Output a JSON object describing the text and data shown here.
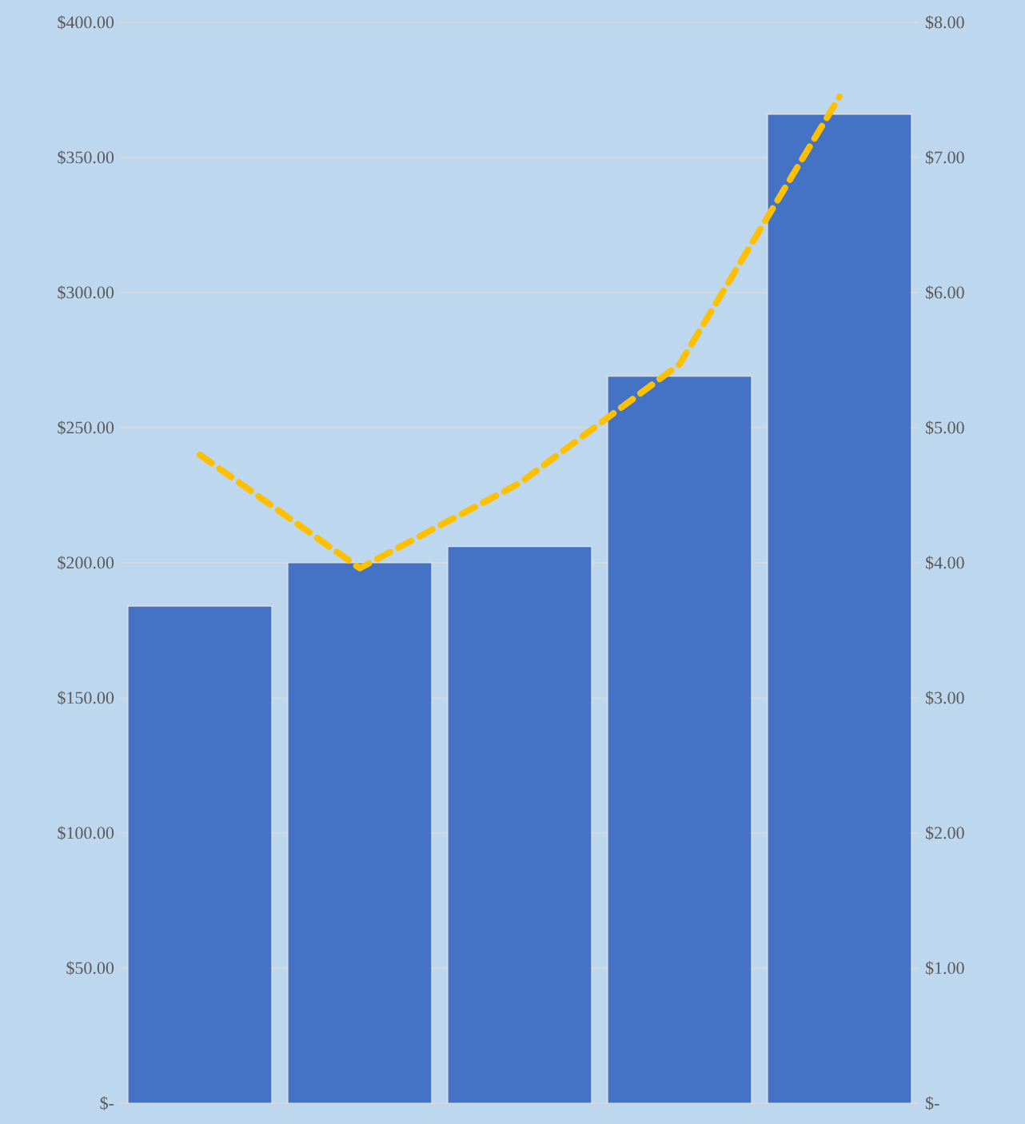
{
  "chart_data": {
    "type": "bar",
    "categories": [
      null,
      null,
      null,
      null,
      null
    ],
    "series": [
      {
        "color": "#4472c4",
        "values": [
          184,
          200,
          206,
          269,
          366
        ]
      },
      {
        "type": "line",
        "axis": "y2",
        "color": "#ffc000",
        "line_style": "dashed",
        "marker": "none",
        "values": [
          4.8,
          3.96,
          4.59,
          5.47,
          7.45
        ]
      }
    ],
    "ylim": [
      0,
      400
    ],
    "yticks": [
      {
        "value": 0,
        "label": "$-"
      },
      {
        "value": 50,
        "label": "$50.00"
      },
      {
        "value": 100,
        "label": "$100.00"
      },
      {
        "value": 150,
        "label": "$150.00"
      },
      {
        "value": 200,
        "label": "$200.00"
      },
      {
        "value": 250,
        "label": "$250.00"
      },
      {
        "value": 300,
        "label": "$300.00"
      },
      {
        "value": 350,
        "label": "$350.00"
      },
      {
        "value": 400,
        "label": "$400.00"
      }
    ],
    "y2lim": [
      0,
      8
    ],
    "y2ticks": [
      {
        "value": 0,
        "label": "$-"
      },
      {
        "value": 1,
        "label": "$1.00"
      },
      {
        "value": 2,
        "label": "$2.00"
      },
      {
        "value": 3,
        "label": "$3.00"
      },
      {
        "value": 4,
        "label": "$4.00"
      },
      {
        "value": 5,
        "label": "$5.00"
      },
      {
        "value": 6,
        "label": "$6.00"
      },
      {
        "value": 7,
        "label": "$7.00"
      },
      {
        "value": 8,
        "label": "$8.00"
      }
    ],
    "grid": "y"
  }
}
